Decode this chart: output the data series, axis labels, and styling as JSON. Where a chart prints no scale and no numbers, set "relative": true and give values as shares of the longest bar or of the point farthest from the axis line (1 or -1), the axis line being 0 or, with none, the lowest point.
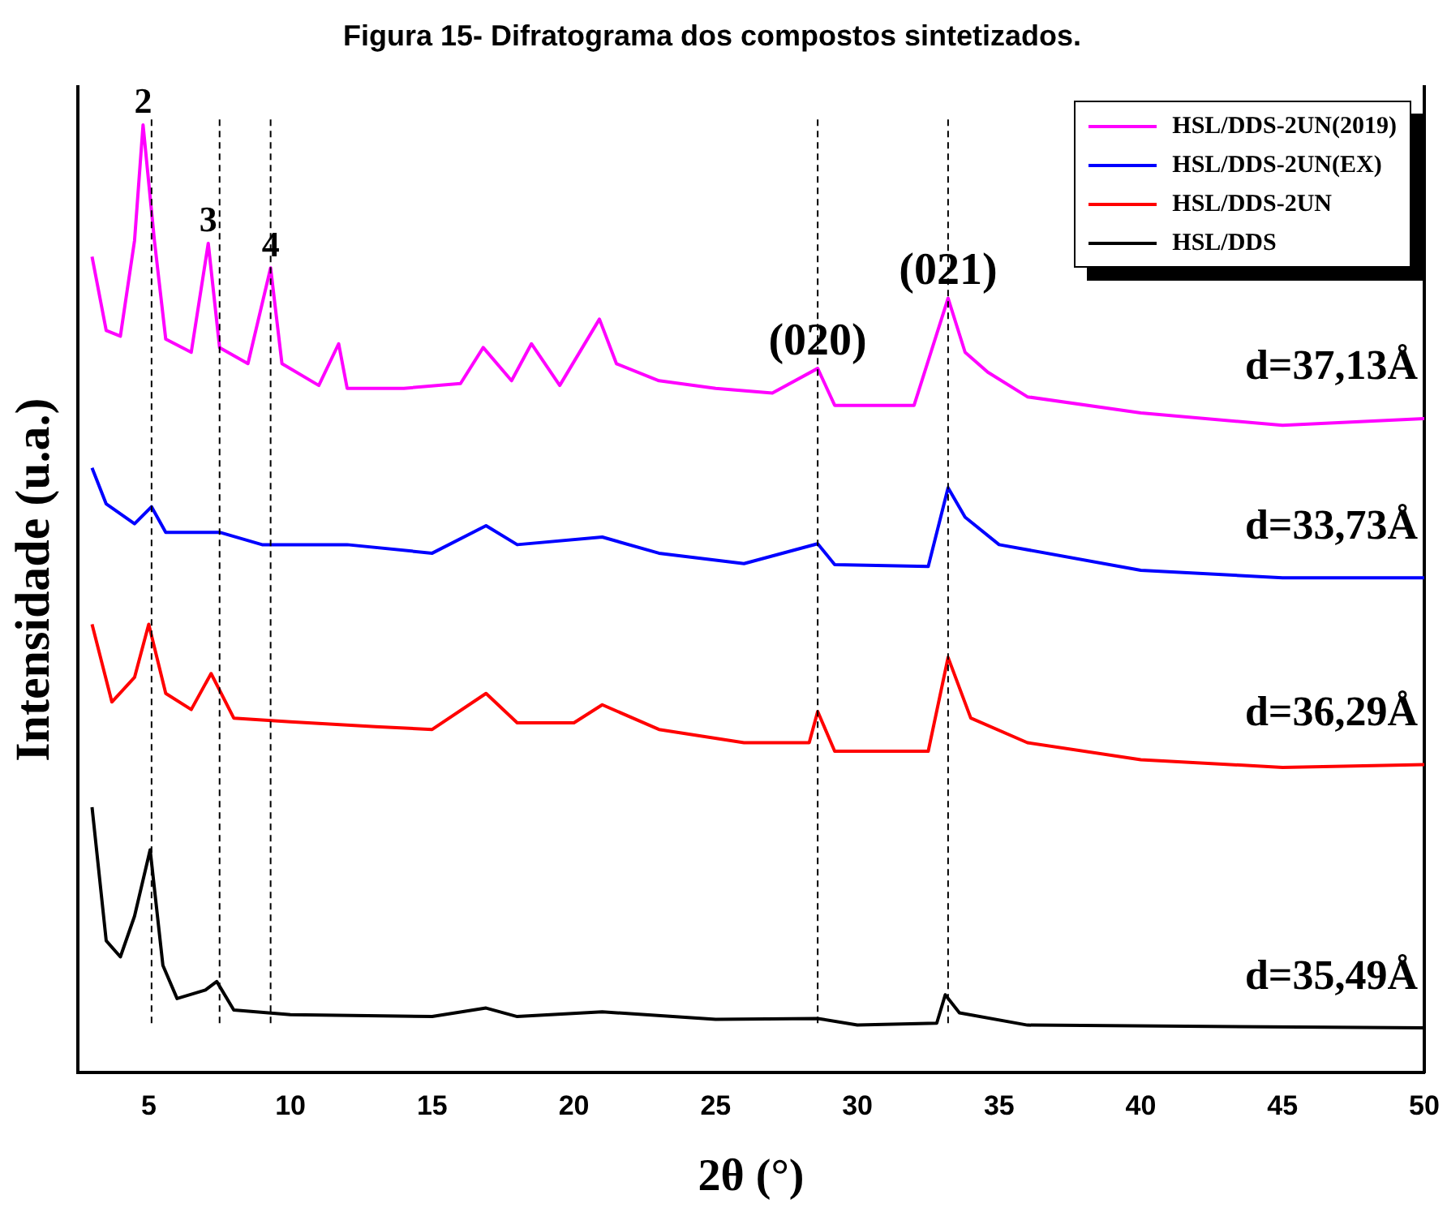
{
  "chart_data": {
    "type": "line",
    "title": "Figura 15- Difratograma dos compostos sintetizados.",
    "xlabel": "2θ (°)",
    "ylabel": "Intensidade (u.a.)",
    "relative": true,
    "xlim": [
      2.5,
      50
    ],
    "xticks": [
      5,
      10,
      15,
      20,
      25,
      30,
      35,
      40,
      45,
      50
    ],
    "legend": "top right",
    "grid": false,
    "marker": "none",
    "line_style": "solid",
    "series": [
      {
        "name": "HSL/DDS-2UN(2019)",
        "color": "#ff00ff",
        "x": [
          3,
          3.5,
          4,
          4.5,
          4.8,
          5.2,
          5.6,
          6.5,
          7.1,
          7.5,
          8.5,
          9.3,
          9.7,
          11,
          11.7,
          12,
          14,
          16,
          16.8,
          17.8,
          18.5,
          19.5,
          20.9,
          21.5,
          23,
          25,
          27,
          28.6,
          29.2,
          32,
          33.2,
          33.8,
          34.6,
          36,
          40,
          45,
          50
        ],
        "values": [
          0.861,
          0.783,
          0.777,
          0.878,
          1,
          0.878,
          0.774,
          0.76,
          0.875,
          0.765,
          0.748,
          0.849,
          0.748,
          0.725,
          0.769,
          0.722,
          0.722,
          0.727,
          0.765,
          0.73,
          0.769,
          0.725,
          0.795,
          0.748,
          0.73,
          0.722,
          0.717,
          0.743,
          0.704,
          0.704,
          0.817,
          0.76,
          0.739,
          0.713,
          0.696,
          0.683,
          0.69
        ]
      },
      {
        "name": "HSL/DDS-2UN(EX)",
        "color": "#0000ff",
        "x": [
          3,
          3.5,
          4.5,
          5.1,
          5.6,
          7.5,
          9,
          12,
          15,
          16.9,
          18,
          21,
          23,
          26,
          28.6,
          29.2,
          32.5,
          33.2,
          33.8,
          35,
          40,
          45,
          50
        ],
        "values": [
          0.638,
          0.6,
          0.579,
          0.597,
          0.57,
          0.57,
          0.557,
          0.557,
          0.548,
          0.577,
          0.557,
          0.565,
          0.548,
          0.537,
          0.558,
          0.536,
          0.534,
          0.617,
          0.586,
          0.557,
          0.53,
          0.522,
          0.522
        ]
      },
      {
        "name": "HSL/DDS-2UN",
        "color": "#ff0000",
        "x": [
          3,
          3.7,
          4.5,
          5,
          5.6,
          6.5,
          7.2,
          8,
          10,
          13,
          15,
          16.9,
          18,
          20,
          21,
          23,
          26,
          28.3,
          28.6,
          29.2,
          32.5,
          33.2,
          34,
          36,
          40,
          45,
          50
        ],
        "values": [
          0.473,
          0.391,
          0.417,
          0.473,
          0.4,
          0.383,
          0.421,
          0.374,
          0.37,
          0.365,
          0.362,
          0.4,
          0.369,
          0.369,
          0.388,
          0.362,
          0.348,
          0.348,
          0.381,
          0.339,
          0.339,
          0.438,
          0.374,
          0.348,
          0.33,
          0.322,
          0.325
        ]
      },
      {
        "name": "HSL/DDS",
        "color": "#000000",
        "x": [
          3,
          3.5,
          4,
          4.5,
          5.05,
          5.5,
          6,
          7,
          7.4,
          8,
          10,
          15,
          16.9,
          18,
          21,
          25,
          28.6,
          30,
          32.8,
          33.1,
          33.6,
          36,
          50
        ],
        "values": [
          0.28,
          0.139,
          0.122,
          0.165,
          0.235,
          0.113,
          0.078,
          0.087,
          0.096,
          0.066,
          0.061,
          0.059,
          0.068,
          0.059,
          0.064,
          0.056,
          0.057,
          0.05,
          0.052,
          0.082,
          0.063,
          0.05,
          0.047
        ]
      }
    ],
    "ref_lines": [
      {
        "axis": "x",
        "value": 5.1,
        "color": "#000000",
        "line_style": "dashed"
      },
      {
        "axis": "x",
        "value": 7.5,
        "color": "#000000",
        "line_style": "dashed"
      },
      {
        "axis": "x",
        "value": 9.3,
        "color": "#000000",
        "line_style": "dashed"
      },
      {
        "axis": "x",
        "value": 28.6,
        "color": "#000000",
        "line_style": "dashed"
      },
      {
        "axis": "x",
        "value": 33.2,
        "color": "#000000",
        "line_style": "dashed"
      }
    ],
    "annotations": [
      {
        "text": "2",
        "x": 4.8,
        "y": 1
      },
      {
        "text": "3",
        "x": 7.1,
        "y": 0.875
      },
      {
        "text": "4",
        "x": 9.3,
        "y": 0.849
      },
      {
        "text": "(020)",
        "x": 28.6,
        "y": 0.743
      },
      {
        "text": "(021)",
        "x": 33.2,
        "y": 0.817
      },
      "d=37,13Å",
      "d=33,73Å",
      "d=36,29Å",
      "d=35,49Å"
    ]
  }
}
